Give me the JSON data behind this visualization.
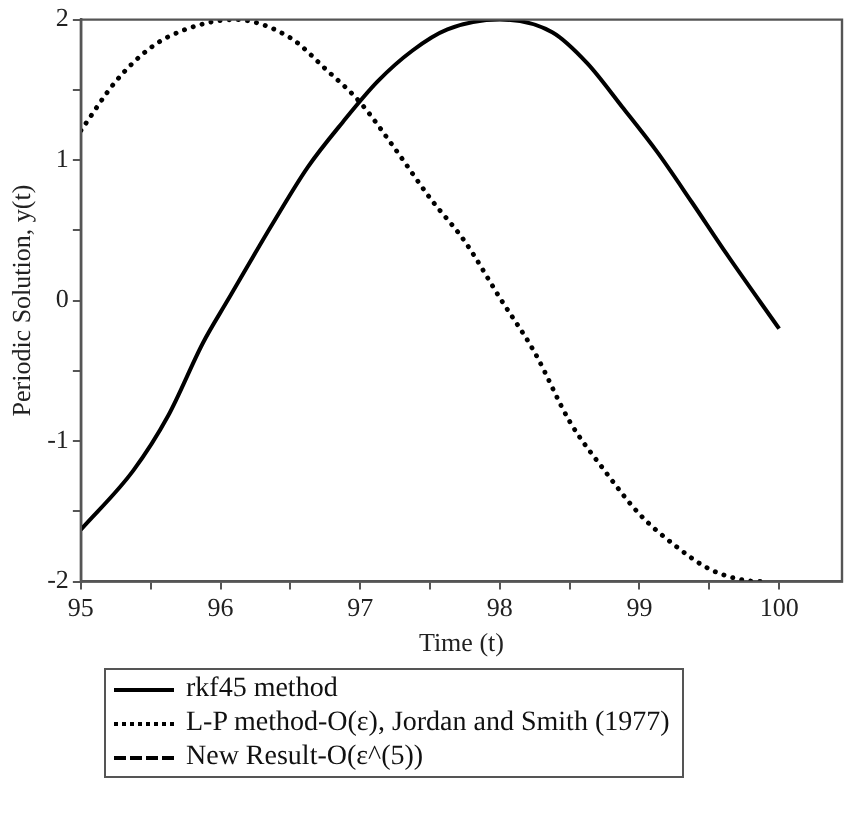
{
  "chart_data": {
    "type": "line",
    "xlabel": "Time (t)",
    "ylabel": "Periodic Solution, y(t)",
    "xlim": [
      95,
      100.45
    ],
    "ylim": [
      -2,
      2
    ],
    "xticks": [
      95,
      {
        "value": 95.5,
        "label": null
      },
      96,
      {
        "value": 96.5,
        "label": null
      },
      97,
      {
        "value": 97.5,
        "label": null
      },
      98,
      {
        "value": 98.5,
        "label": null
      },
      99,
      {
        "value": 99.5,
        "label": null
      },
      100
    ],
    "yticks": [
      -2,
      {
        "value": -1.5,
        "label": null
      },
      -1,
      {
        "value": -0.5,
        "label": null
      },
      0,
      {
        "value": 0.5,
        "label": null
      },
      1,
      {
        "value": 1.5,
        "label": null
      },
      2
    ],
    "legend": "bottom",
    "marker": "none",
    "series": [
      {
        "name": "rkf45 method",
        "color": "#000000",
        "line_style": "solid",
        "x": [
          95,
          95.375,
          95.625,
          95.875,
          96.05,
          96.375,
          96.625,
          96.875,
          97.125,
          97.375,
          97.625,
          98,
          98.375,
          98.625,
          98.875,
          99.125,
          99.375,
          99.625,
          100
        ],
        "values": [
          -1.63,
          -1.21,
          -0.82,
          -0.3,
          0,
          0.55,
          0.95,
          1.27,
          1.56,
          1.78,
          1.93,
          2,
          1.91,
          1.69,
          1.38,
          1.06,
          0.7,
          0.33,
          -0.2
        ]
      },
      {
        "name": "L-P method-O(ε), Jordan and Smith (1977)",
        "color": "#000000",
        "line_style": "dotted",
        "x": [
          95,
          95.25,
          95.5,
          95.75,
          96.1,
          96.5,
          96.75,
          97,
          97.25,
          97.5,
          97.75,
          98,
          98.25,
          98.5,
          98.75,
          99,
          99.25,
          99.5,
          99.75,
          99.9
        ],
        "values": [
          1.21,
          1.56,
          1.8,
          1.93,
          2,
          1.87,
          1.65,
          1.41,
          1.08,
          0.73,
          0.42,
          0.02,
          -0.37,
          -0.86,
          -1.21,
          -1.52,
          -1.74,
          -1.91,
          -1.99,
          -2
        ]
      },
      {
        "name": "New Result-O(ε^(5))",
        "color": "#000000",
        "line_style": "dashed"
      }
    ]
  }
}
